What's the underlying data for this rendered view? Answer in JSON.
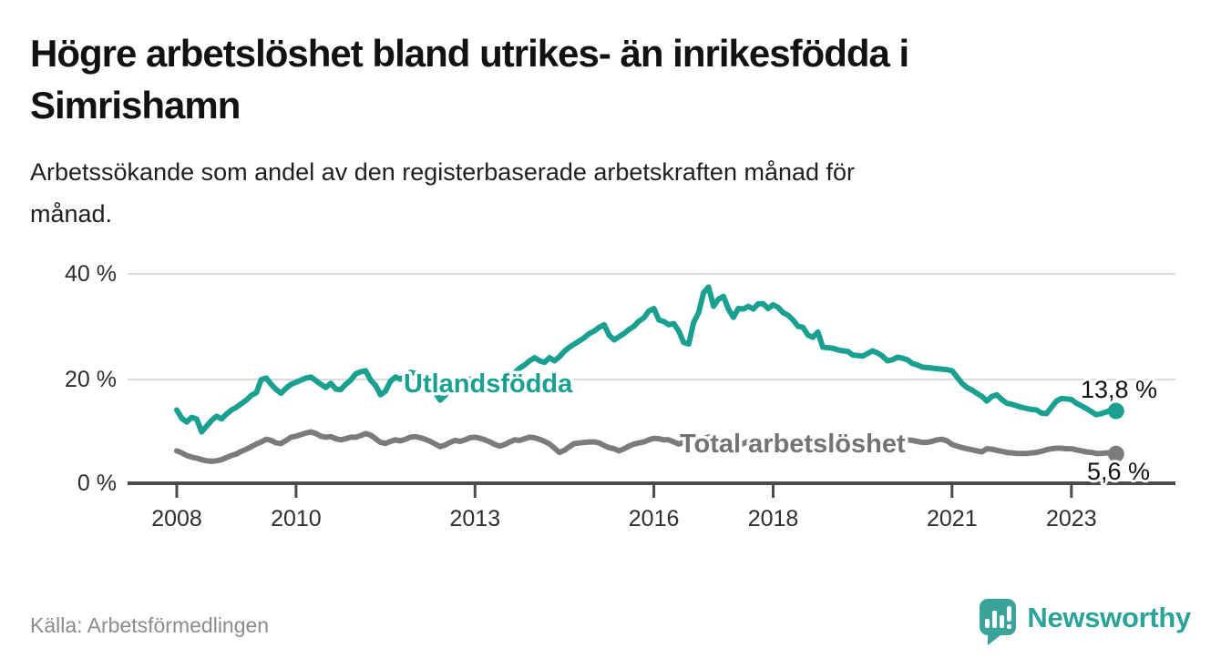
{
  "header": {
    "title_lines": [
      "Högre arbetslöshet bland utrikes- än inrikesfödda i",
      "Simrishamn"
    ],
    "subtitle_lines": [
      "Arbetssökande som andel av den registerbaserade arbetskraften månad för",
      "månad."
    ]
  },
  "chart_data": {
    "type": "line",
    "unit": "%",
    "frequency": "monthly",
    "start": {
      "year": 2008,
      "month": 1
    },
    "end": {
      "year": 2023,
      "month": 10
    },
    "ylim": [
      0,
      44
    ],
    "grid": "horizontal",
    "legend_position": "inline-labels",
    "y_ticks": [
      {
        "value": 0,
        "label": "0 %"
      },
      {
        "value": 20,
        "label": "20 %"
      },
      {
        "value": 40,
        "label": "40 %"
      }
    ],
    "x_tick_years": [
      2008,
      2010,
      2013,
      2016,
      2018,
      2021,
      2023
    ],
    "x_tick_labels": [
      "2008",
      "2010",
      "2013",
      "2016",
      "2018",
      "2021",
      "2023"
    ],
    "series": [
      {
        "name": "Utlandsfödda",
        "color": "#1aa091",
        "end_value": 13.8,
        "end_label": "13,8 %",
        "values": [
          14.0,
          12.4,
          11.7,
          12.6,
          12.3,
          9.8,
          10.9,
          12.0,
          12.8,
          12.3,
          13.2,
          14.0,
          14.5,
          15.2,
          15.9,
          16.8,
          17.3,
          19.8,
          20.1,
          18.9,
          17.9,
          17.2,
          18.2,
          18.9,
          19.3,
          19.7,
          20.1,
          20.3,
          19.6,
          18.9,
          18.3,
          19.1,
          18.0,
          17.9,
          18.9,
          19.7,
          20.9,
          21.3,
          21.5,
          19.7,
          18.7,
          16.9,
          17.6,
          19.5,
          20.3,
          19.9,
          20.4,
          21.2,
          21.0,
          20.2,
          19.5,
          18.4,
          17.3,
          15.9,
          16.8,
          18.2,
          19.1,
          18.7,
          19.3,
          19.9,
          19.9,
          19.6,
          19.2,
          18.4,
          17.8,
          17.9,
          18.6,
          19.8,
          21.1,
          22.0,
          22.6,
          23.4,
          24.0,
          23.4,
          23.1,
          24.0,
          23.4,
          24.2,
          25.2,
          26.0,
          26.6,
          27.2,
          27.8,
          28.6,
          29.1,
          29.8,
          30.3,
          28.3,
          27.4,
          28.0,
          28.6,
          29.4,
          30.0,
          31.0,
          31.6,
          32.9,
          33.4,
          31.2,
          30.9,
          30.3,
          30.5,
          29.1,
          26.9,
          26.6,
          30.7,
          32.6,
          36.4,
          37.5,
          33.8,
          35.2,
          35.7,
          33.3,
          31.7,
          33.4,
          33.3,
          33.8,
          33.3,
          34.3,
          34.3,
          33.4,
          34.1,
          33.6,
          32.6,
          32.1,
          31.2,
          30.0,
          29.8,
          28.3,
          27.9,
          28.9,
          26.0,
          25.9,
          25.8,
          25.5,
          25.3,
          25.2,
          24.5,
          24.4,
          24.3,
          24.8,
          25.3,
          24.9,
          24.3,
          23.4,
          23.6,
          24.1,
          23.9,
          23.6,
          22.9,
          22.6,
          22.2,
          22.1,
          22.0,
          21.9,
          21.8,
          21.7,
          21.5,
          20.3,
          19.1,
          18.3,
          17.8,
          17.2,
          16.6,
          15.7,
          16.6,
          16.9,
          16.0,
          15.3,
          15.1,
          14.8,
          14.5,
          14.3,
          14.1,
          14.0,
          13.4,
          13.3,
          14.5,
          15.7,
          16.2,
          16.1,
          16.0,
          15.3,
          14.8,
          14.3,
          13.7,
          13.1,
          13.3,
          13.6,
          14.0,
          13.8
        ]
      },
      {
        "name": "Total arbetslöshet",
        "color": "#7b7b7b",
        "end_value": 5.6,
        "end_label": "5,6 %",
        "values": [
          6.2,
          5.8,
          5.3,
          5.0,
          4.8,
          4.5,
          4.3,
          4.2,
          4.3,
          4.5,
          4.9,
          5.3,
          5.6,
          6.1,
          6.5,
          7.0,
          7.5,
          7.9,
          8.4,
          8.2,
          7.7,
          7.6,
          8.2,
          8.8,
          9.0,
          9.3,
          9.6,
          9.8,
          9.5,
          9.0,
          8.8,
          8.9,
          8.5,
          8.3,
          8.5,
          8.8,
          8.8,
          9.1,
          9.5,
          9.2,
          8.5,
          7.8,
          7.6,
          8.0,
          8.3,
          8.1,
          8.4,
          8.8,
          8.9,
          8.7,
          8.4,
          8.0,
          7.5,
          7.0,
          7.3,
          7.8,
          8.2,
          8.0,
          8.3,
          8.7,
          8.8,
          8.6,
          8.3,
          7.9,
          7.4,
          7.1,
          7.4,
          7.9,
          8.3,
          8.2,
          8.5,
          8.8,
          8.7,
          8.4,
          8.0,
          7.5,
          6.7,
          5.9,
          6.3,
          7.0,
          7.6,
          7.7,
          7.8,
          7.9,
          7.9,
          7.7,
          7.2,
          6.8,
          6.6,
          6.2,
          6.6,
          7.1,
          7.5,
          7.7,
          7.9,
          8.3,
          8.6,
          8.5,
          8.3,
          8.3,
          7.9,
          7.5,
          7.8,
          8.2,
          8.5,
          8.4,
          8.6,
          8.8,
          8.8,
          8.6,
          8.3,
          7.9,
          7.5,
          7.3,
          7.6,
          8.0,
          8.3,
          8.2,
          8.4,
          8.6,
          8.5,
          8.3,
          8.0,
          7.6,
          7.2,
          6.9,
          7.2,
          7.5,
          7.7,
          7.6,
          7.7,
          7.8,
          7.7,
          7.5,
          7.3,
          7.0,
          6.8,
          6.6,
          6.9,
          7.2,
          7.4,
          7.3,
          7.4,
          7.6,
          7.5,
          7.6,
          7.9,
          8.3,
          8.2,
          8.0,
          7.8,
          7.8,
          8.0,
          8.3,
          8.4,
          8.1,
          7.4,
          7.1,
          6.8,
          6.6,
          6.4,
          6.2,
          6.0,
          6.6,
          6.5,
          6.3,
          6.1,
          5.9,
          5.8,
          5.7,
          5.7,
          5.7,
          5.8,
          5.9,
          6.1,
          6.4,
          6.6,
          6.7,
          6.7,
          6.6,
          6.6,
          6.4,
          6.2,
          6.0,
          5.9,
          5.7,
          5.7,
          5.8,
          5.8,
          5.6
        ]
      }
    ]
  },
  "footer": {
    "source": "Källa: Arbetsförmedlingen",
    "logo_text": "Newsworthy"
  },
  "colors": {
    "accent_teal": "#1aa091",
    "gray_line": "#7b7b7b",
    "logo_teal": "#2aa49b",
    "axis_dark": "#4b4b4b",
    "gridline": "#dbdbdb"
  }
}
